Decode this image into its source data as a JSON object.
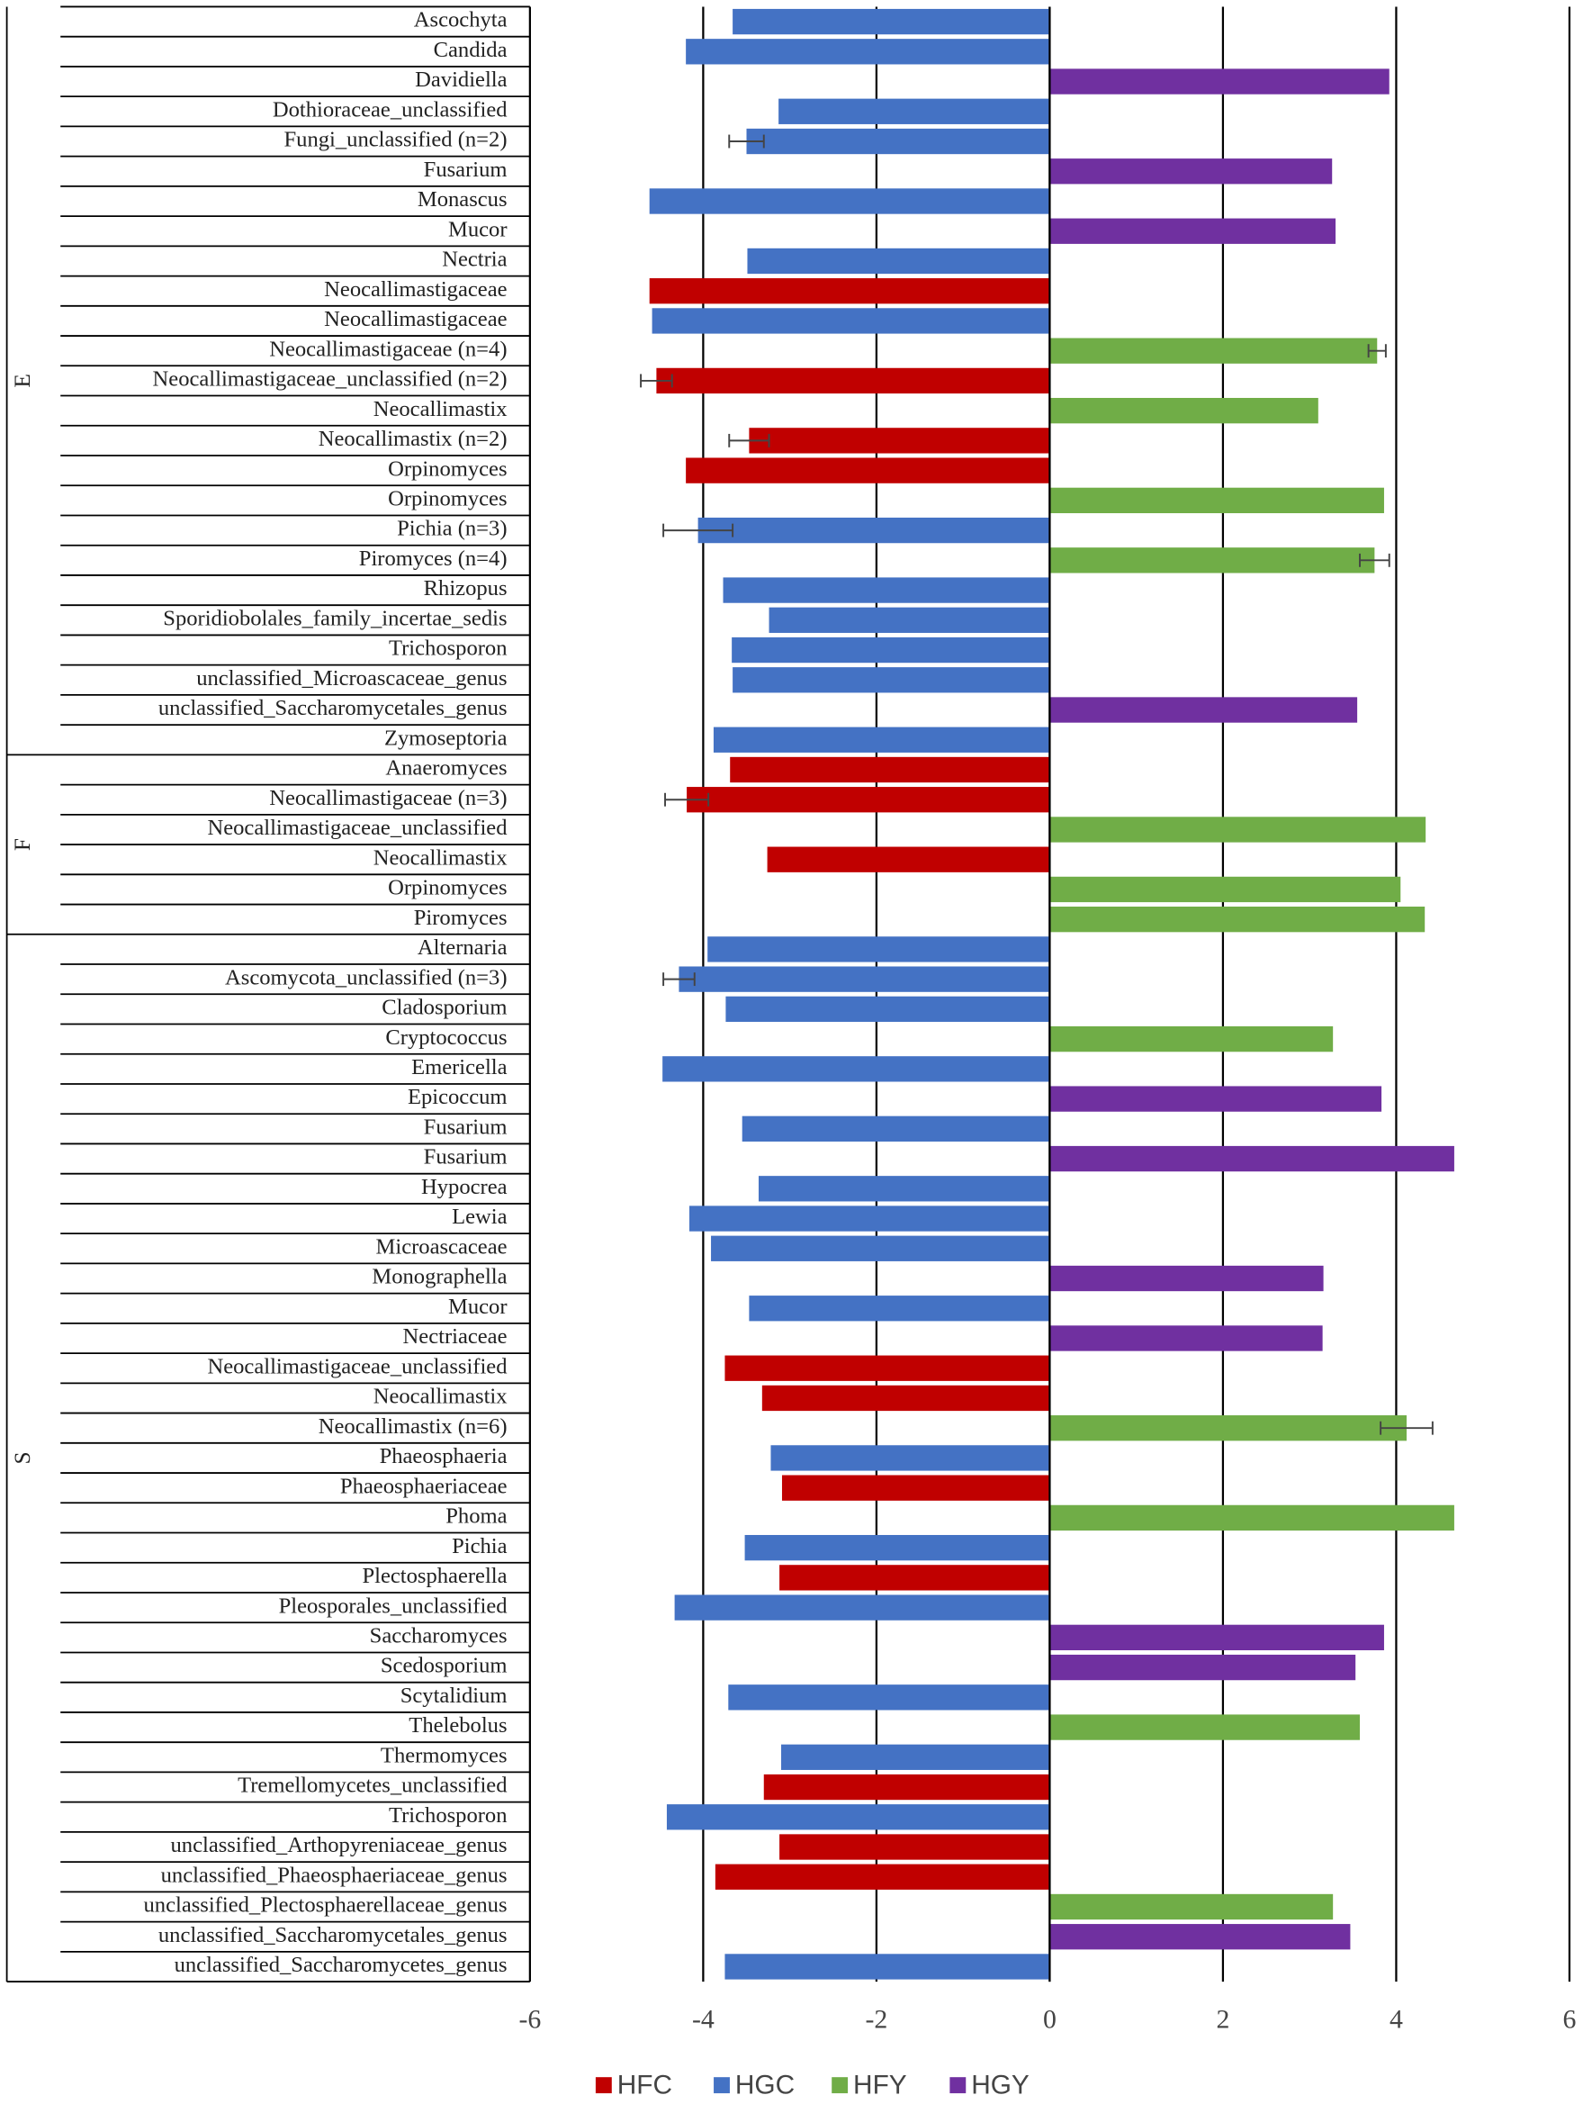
{
  "chart_data": {
    "type": "hbar",
    "categories": [
      "Ascochyta",
      "Candida",
      "Davidiella",
      "Dothioraceae_unclassified",
      "Fungi_unclassified (n=2)",
      "Fusarium",
      "Monascus",
      "Mucor",
      "Nectria",
      "Neocallimastigaceae",
      "Neocallimastigaceae",
      "Neocallimastigaceae (n=4)",
      "Neocallimastigaceae_unclassified (n=2)",
      "Neocallimastix",
      "Neocallimastix (n=2)",
      "Orpinomyces",
      "Orpinomyces",
      "Pichia (n=3)",
      "Piromyces (n=4)",
      "Rhizopus",
      "Sporidiobolales_family_incertae_sedis",
      "Trichosporon",
      "unclassified_Microascaceae_genus",
      "unclassified_Saccharomycetales_genus",
      "Zymoseptoria",
      "Anaeromyces",
      "Neocallimastigaceae (n=3)",
      "Neocallimastigaceae_unclassified",
      "Neocallimastix",
      "Orpinomyces",
      "Piromyces",
      "Alternaria",
      "Ascomycota_unclassified (n=3)",
      "Cladosporium",
      "Cryptococcus",
      "Emericella",
      "Epicoccum",
      "Fusarium",
      "Fusarium",
      "Hypocrea",
      "Lewia",
      "Microascaceae",
      "Monographella",
      "Mucor",
      "Nectriaceae",
      "Neocallimastigaceae_unclassified",
      "Neocallimastix",
      "Neocallimastix (n=6)",
      "Phaeosphaeria",
      "Phaeosphaeriaceae",
      "Phoma",
      "Pichia",
      "Plectosphaerella",
      "Pleosporales_unclassified",
      "Saccharomyces",
      "Scedosporium",
      "Scytalidium",
      "Thelebolus",
      "Thermomyces",
      "Tremellomycetes_unclassified",
      "Trichosporon",
      "unclassified_Arthopyreniaceae_genus",
      "unclassified_Phaeosphaeriaceae_genus",
      "unclassified_Plectosphaerellaceae_genus",
      "unclassified_Saccharomycetales_genus",
      "unclassified_Saccharomycetes_genus"
    ],
    "group": [
      "E",
      "E",
      "E",
      "E",
      "E",
      "E",
      "E",
      "E",
      "E",
      "E",
      "E",
      "E",
      "E",
      "E",
      "E",
      "E",
      "E",
      "E",
      "E",
      "E",
      "E",
      "E",
      "E",
      "E",
      "E",
      "F",
      "F",
      "F",
      "F",
      "F",
      "F",
      "S",
      "S",
      "S",
      "S",
      "S",
      "S",
      "S",
      "S",
      "S",
      "S",
      "S",
      "S",
      "S",
      "S",
      "S",
      "S",
      "S",
      "S",
      "S",
      "S",
      "S",
      "S",
      "S",
      "S",
      "S",
      "S",
      "S",
      "S",
      "S",
      "S",
      "S",
      "S",
      "S",
      "S",
      "S"
    ],
    "values": [
      -3.66,
      -4.2,
      3.92,
      -3.13,
      -3.5,
      3.26,
      -4.62,
      3.3,
      -3.49,
      -4.62,
      -4.59,
      3.78,
      -4.54,
      3.1,
      -3.47,
      -4.2,
      3.86,
      -4.06,
      3.75,
      -3.77,
      -3.24,
      -3.67,
      -3.66,
      3.55,
      -3.88,
      -3.69,
      -4.19,
      4.34,
      -3.26,
      4.05,
      4.33,
      -3.95,
      -4.28,
      -3.74,
      3.27,
      -4.47,
      3.83,
      -3.55,
      4.67,
      -3.36,
      -4.16,
      -3.91,
      3.16,
      -3.47,
      3.15,
      -3.75,
      -3.32,
      4.12,
      -3.22,
      -3.09,
      4.67,
      -3.52,
      -3.12,
      -4.33,
      3.86,
      3.53,
      -3.71,
      3.58,
      -3.1,
      -3.3,
      -4.42,
      -3.12,
      -3.86,
      3.27,
      3.47,
      -3.75
    ],
    "errors": [
      null,
      null,
      null,
      null,
      0.2,
      null,
      null,
      null,
      null,
      null,
      null,
      0.1,
      0.18,
      null,
      0.23,
      null,
      null,
      0.4,
      0.17,
      null,
      null,
      null,
      null,
      null,
      null,
      null,
      0.25,
      null,
      null,
      null,
      null,
      null,
      0.18,
      null,
      null,
      null,
      null,
      null,
      null,
      null,
      null,
      null,
      null,
      null,
      null,
      null,
      null,
      0.3,
      null,
      null,
      null,
      null,
      null,
      null,
      null,
      null,
      null,
      null,
      null,
      null,
      null,
      null,
      null,
      null,
      null,
      null
    ],
    "colors": [
      "#4472c4",
      "#4472c4",
      "#7030a0",
      "#4472c4",
      "#4472c4",
      "#7030a0",
      "#4472c4",
      "#7030a0",
      "#4472c4",
      "#c00000",
      "#4472c4",
      "#70ad47",
      "#c00000",
      "#70ad47",
      "#c00000",
      "#c00000",
      "#70ad47",
      "#4472c4",
      "#70ad47",
      "#4472c4",
      "#4472c4",
      "#4472c4",
      "#4472c4",
      "#7030a0",
      "#4472c4",
      "#c00000",
      "#c00000",
      "#70ad47",
      "#c00000",
      "#70ad47",
      "#70ad47",
      "#4472c4",
      "#4472c4",
      "#4472c4",
      "#70ad47",
      "#4472c4",
      "#7030a0",
      "#4472c4",
      "#7030a0",
      "#4472c4",
      "#4472c4",
      "#4472c4",
      "#7030a0",
      "#4472c4",
      "#7030a0",
      "#c00000",
      "#c00000",
      "#70ad47",
      "#4472c4",
      "#c00000",
      "#70ad47",
      "#4472c4",
      "#c00000",
      "#4472c4",
      "#7030a0",
      "#7030a0",
      "#4472c4",
      "#70ad47",
      "#4472c4",
      "#c00000",
      "#4472c4",
      "#c00000",
      "#c00000",
      "#70ad47",
      "#7030a0",
      "#4472c4"
    ],
    "legend": [
      {
        "name": "HFC",
        "color": "#c00000"
      },
      {
        "name": "HGC",
        "color": "#4472c4"
      },
      {
        "name": "HFY",
        "color": "#70ad47"
      },
      {
        "name": "HGY",
        "color": "#7030a0"
      }
    ],
    "xlim": [
      -6,
      6
    ],
    "xticks": [
      -6,
      -4,
      -2,
      0,
      2,
      4,
      6
    ],
    "grid": true
  }
}
